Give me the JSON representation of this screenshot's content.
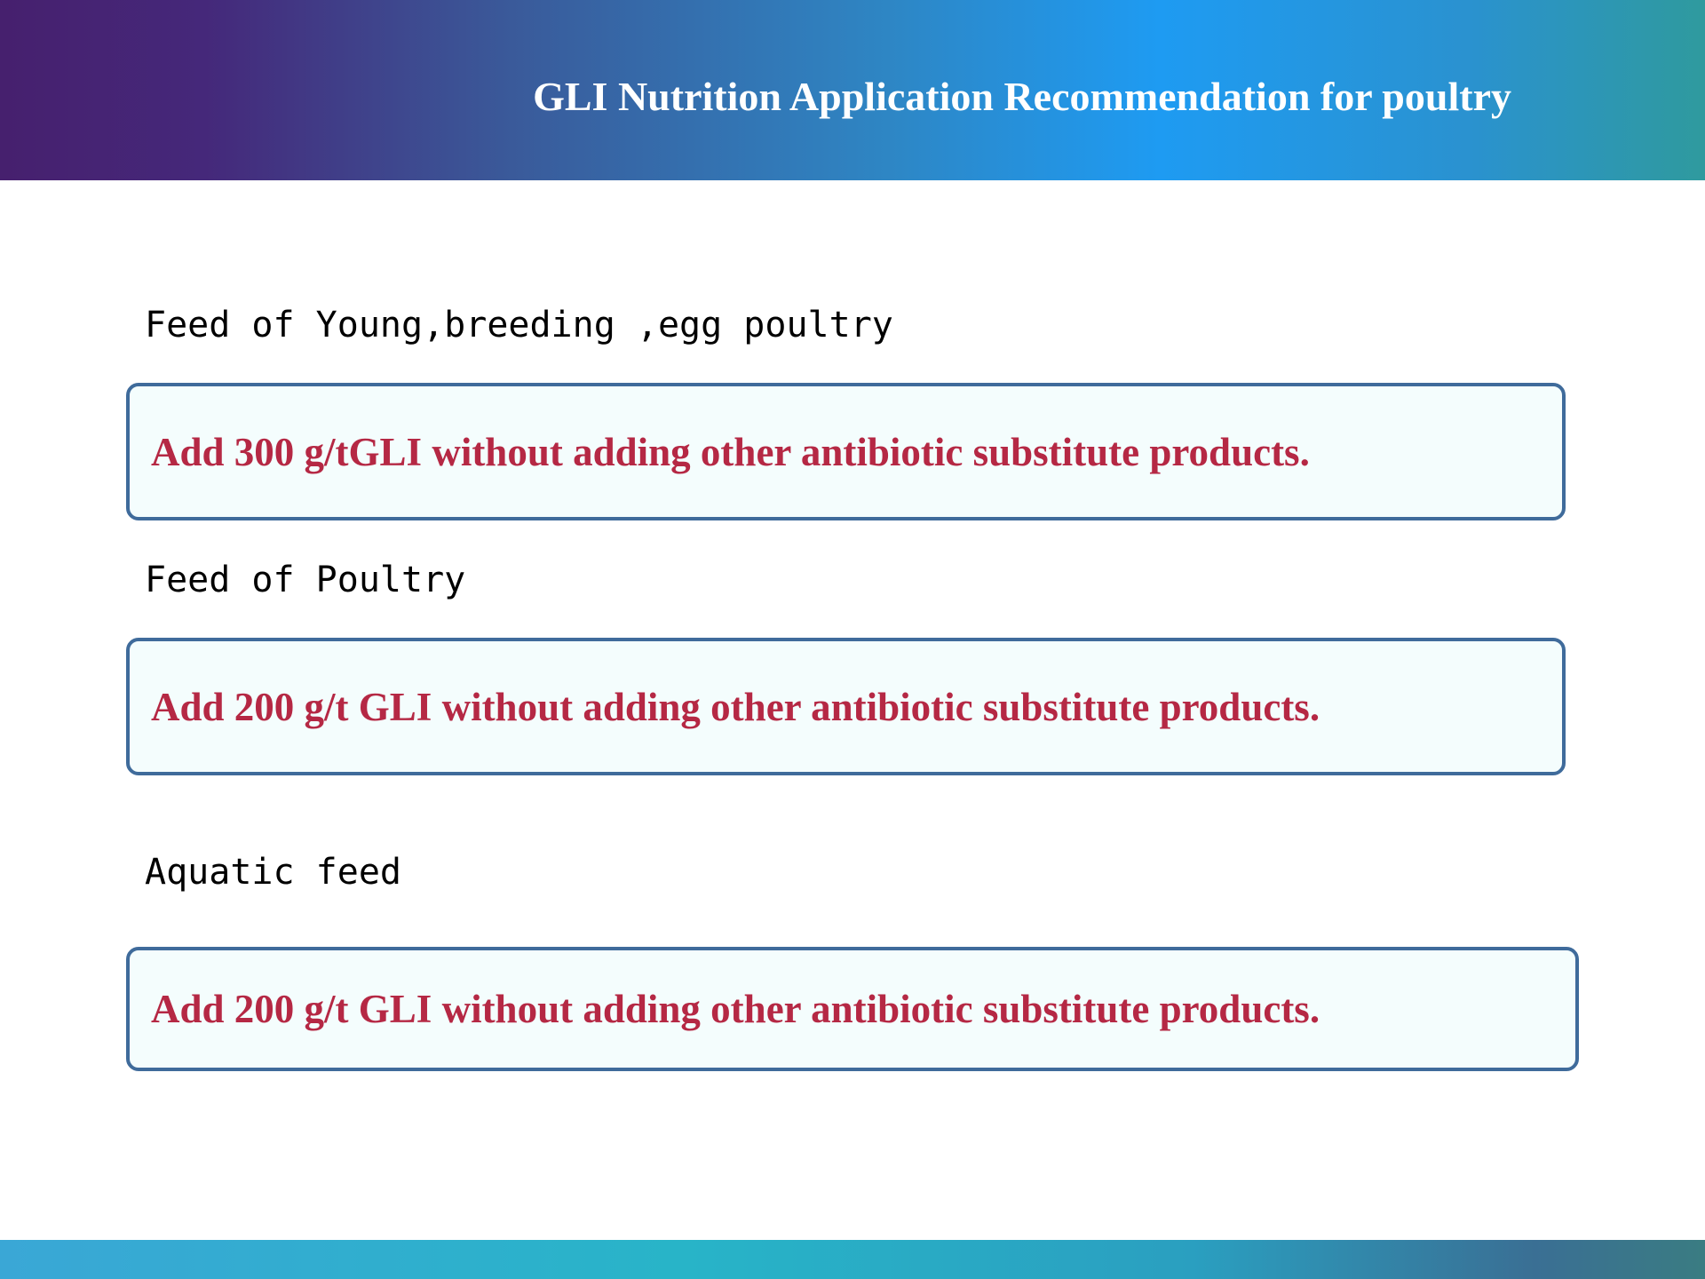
{
  "header": {
    "title": "GLI  Nutrition Application Recommendation for poultry"
  },
  "sections": [
    {
      "label": "Feed of Young,breeding ,egg poultry",
      "recommendation": "Add 300 g/tGLI without adding other antibiotic substitute products."
    },
    {
      "label": "Feed of Poultry",
      "recommendation": "Add 200 g/t GLI without adding other antibiotic substitute products."
    },
    {
      "label": "Aquatic feed",
      "recommendation": "Add 200 g/t GLI without adding other antibiotic substitute products."
    }
  ],
  "colors": {
    "header_gradient_start": "#46206e",
    "header_gradient_mid": "#1e9bf2",
    "header_gradient_end": "#2f9a9e",
    "box_border": "#3f6b9b",
    "box_fill": "#f4fdfd",
    "recommendation_text": "#b52844",
    "label_text": "#000000"
  }
}
